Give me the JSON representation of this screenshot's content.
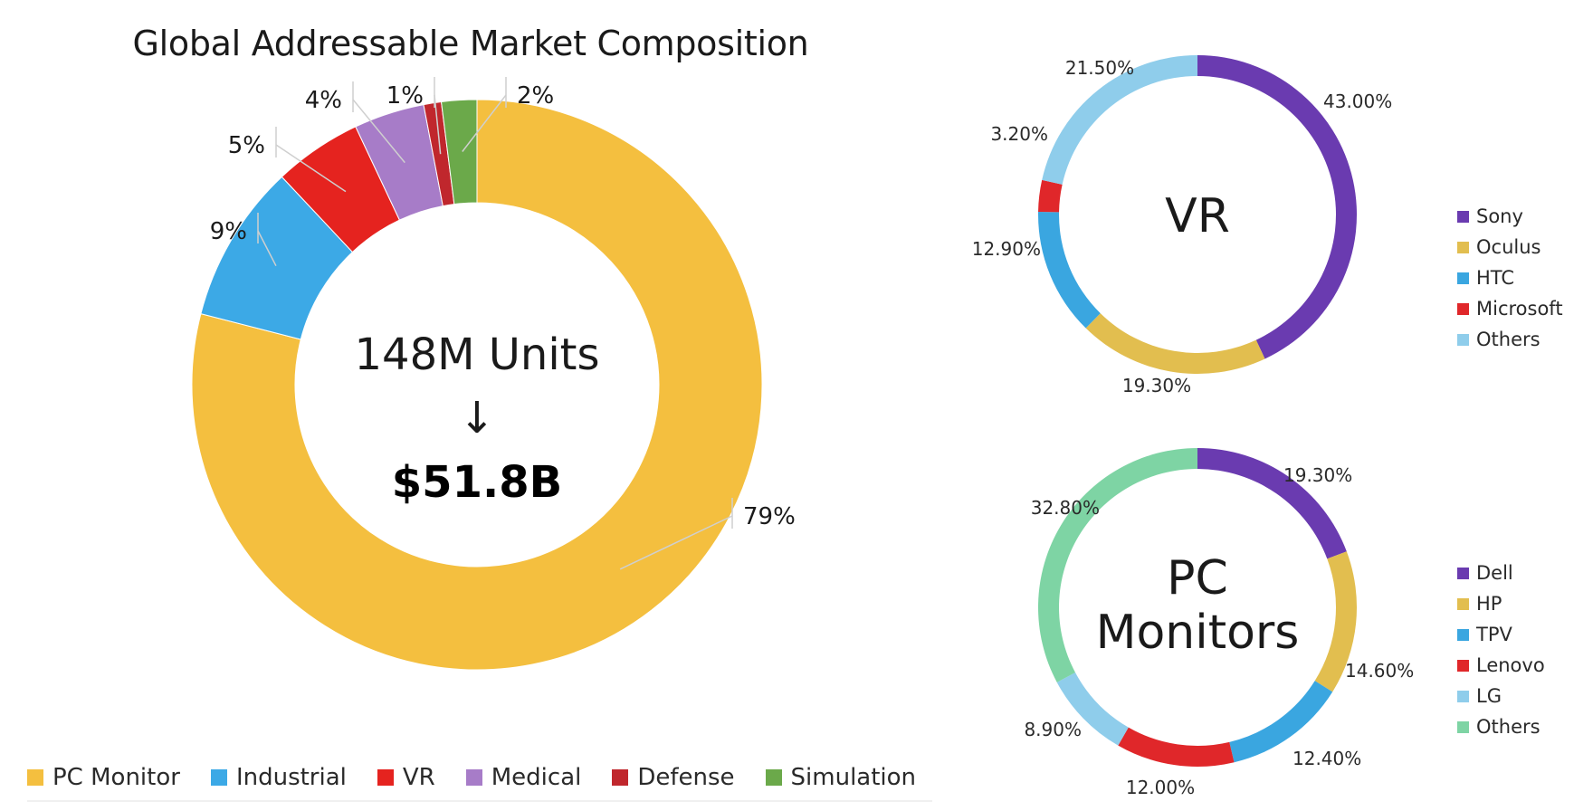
{
  "chart_data": [
    {
      "type": "donut",
      "title": "Global Addressable Market Composition",
      "center_text": "148M Units",
      "center_value": "$51.8B",
      "arrow": "↓",
      "categories": [
        "PC Monitor",
        "Industrial",
        "VR",
        "Medical",
        "Defense",
        "Simulation"
      ],
      "values": [
        79,
        9,
        5,
        4,
        1,
        2
      ],
      "value_labels": [
        "79%",
        "9%",
        "5%",
        "4%",
        "1%",
        "2%"
      ],
      "colors": [
        "#F4BF3F",
        "#3CA9E6",
        "#E5231F",
        "#A77CC8",
        "#C0272D",
        "#6BA94A"
      ],
      "legend_placement": "bottom"
    },
    {
      "type": "donut",
      "center_text": "VR",
      "categories": [
        "Sony",
        "Oculus",
        "HTC",
        "Microsoft",
        "Others"
      ],
      "values": [
        43.0,
        19.3,
        12.9,
        3.2,
        21.5
      ],
      "value_labels": [
        "43.00%",
        "19.30%",
        "12.90%",
        "3.20%",
        "21.50%"
      ],
      "colors": [
        "#6A3BB0",
        "#E2BE4F",
        "#3AA6E0",
        "#E0272A",
        "#8FCDEB"
      ],
      "legend_placement": "right"
    },
    {
      "type": "donut",
      "center_text_lines": [
        "PC",
        "Monitors"
      ],
      "categories": [
        "Dell",
        "HP",
        "TPV",
        "Lenovo",
        "LG",
        "Others"
      ],
      "values": [
        19.3,
        14.6,
        12.4,
        12.0,
        8.9,
        32.8
      ],
      "value_labels": [
        "19.30%",
        "14.60%",
        "12.40%",
        "12.00%",
        "8.90%",
        "32.80%"
      ],
      "colors": [
        "#6A3BB0",
        "#E2BE4F",
        "#3AA6E0",
        "#E0272A",
        "#8FCDEB",
        "#7ED4A4"
      ],
      "legend_placement": "right"
    }
  ]
}
